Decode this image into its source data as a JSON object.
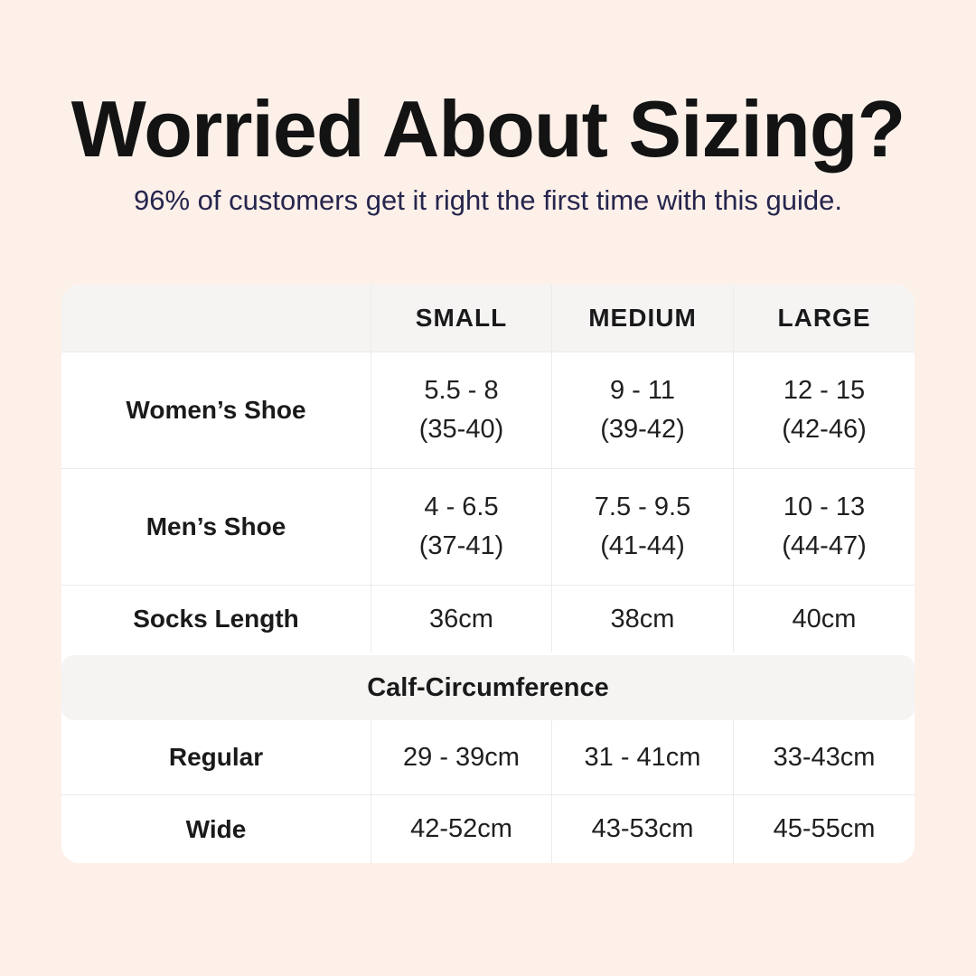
{
  "page": {
    "title": "Worried About Sizing?",
    "subtitle": "96% of customers get it right the first time with this guide."
  },
  "colors": {
    "background": "#fcf0e9",
    "table_background": "#ffffff",
    "band_background": "#f5f4f3",
    "border": "#ebebeb",
    "title_text": "#131313",
    "subtitle_text": "#26254d",
    "table_text": "#1f1f1f"
  },
  "chart_data": {
    "type": "table",
    "title": "Worried About Sizing?",
    "subtitle": "96% of customers get it right the first time with this guide.",
    "header": {
      "col1": "",
      "small": "SMALL",
      "medium": "MEDIUM",
      "large": "LARGE"
    },
    "rows": [
      {
        "label": "Women’s Shoe",
        "cells": [
          {
            "l1": "5.5 - 8",
            "l2": "(35-40)"
          },
          {
            "l1": "9 - 11",
            "l2": "(39-42)"
          },
          {
            "l1": "12 - 15",
            "l2": "(42-46)"
          }
        ]
      },
      {
        "label": "Men’s Shoe",
        "cells": [
          {
            "l1": "4 - 6.5",
            "l2": "(37-41)"
          },
          {
            "l1": "7.5 - 9.5",
            "l2": "(41-44)"
          },
          {
            "l1": "10 - 13",
            "l2": "(44-47)"
          }
        ]
      },
      {
        "label": "Socks Length",
        "cells": [
          {
            "l1": "36cm"
          },
          {
            "l1": "38cm"
          },
          {
            "l1": "40cm"
          }
        ]
      }
    ],
    "section_header": "Calf-Circumference",
    "section_rows": [
      {
        "label": "Regular",
        "cells": [
          {
            "l1": "29 - 39cm"
          },
          {
            "l1": "31 - 41cm"
          },
          {
            "l1": "33-43cm"
          }
        ]
      },
      {
        "label": "Wide",
        "cells": [
          {
            "l1": "42-52cm"
          },
          {
            "l1": "43-53cm"
          },
          {
            "l1": "45-55cm"
          }
        ]
      }
    ]
  }
}
